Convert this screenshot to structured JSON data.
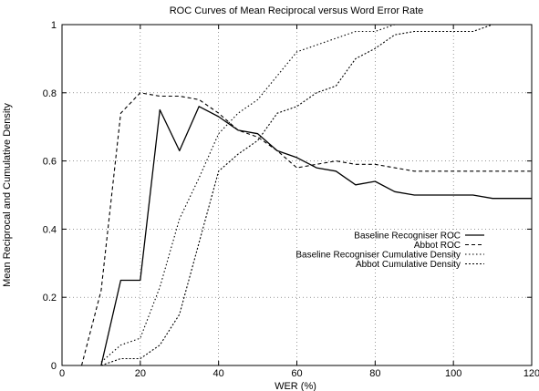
{
  "chart_data": {
    "type": "line",
    "title": "ROC Curves of Mean Reciprocal versus Word Error Rate",
    "xlabel": "WER (%)",
    "ylabel": "Mean Reciprocal and Cumulative Density",
    "xlim": [
      0,
      120
    ],
    "ylim": [
      0,
      1
    ],
    "xticks": [
      0,
      20,
      40,
      60,
      80,
      100,
      120
    ],
    "yticks": [
      0,
      0.2,
      0.4,
      0.6,
      0.8,
      1
    ],
    "grid": true,
    "legend_position": "right-middle",
    "series": [
      {
        "name": "Baseline Recogniser ROC",
        "dash": "solid",
        "x": [
          10,
          15,
          20,
          25,
          30,
          35,
          40,
          45,
          50,
          55,
          60,
          65,
          70,
          75,
          80,
          85,
          90,
          95,
          100,
          105,
          110,
          115,
          120
        ],
        "y": [
          0,
          0.25,
          0.25,
          0.75,
          0.63,
          0.76,
          0.73,
          0.69,
          0.68,
          0.63,
          0.61,
          0.58,
          0.57,
          0.53,
          0.54,
          0.51,
          0.5,
          0.5,
          0.5,
          0.5,
          0.49,
          0.49,
          0.49
        ]
      },
      {
        "name": "Abbot ROC",
        "dash": "dashed",
        "x": [
          5,
          10,
          15,
          20,
          25,
          30,
          35,
          40,
          45,
          50,
          55,
          60,
          65,
          70,
          75,
          80,
          85,
          90,
          95,
          100,
          105,
          110,
          115,
          120
        ],
        "y": [
          0,
          0.22,
          0.74,
          0.8,
          0.79,
          0.79,
          0.78,
          0.74,
          0.69,
          0.67,
          0.63,
          0.58,
          0.59,
          0.6,
          0.59,
          0.59,
          0.58,
          0.57,
          0.57,
          0.57,
          0.57,
          0.57,
          0.57,
          0.57
        ]
      },
      {
        "name": "Baseline Recogniser Cumulative Density",
        "dash": "dotted",
        "x": [
          10,
          15,
          20,
          25,
          30,
          35,
          40,
          45,
          50,
          55,
          60,
          65,
          70,
          75,
          80,
          85,
          90,
          95,
          100,
          105,
          110,
          115,
          120
        ],
        "y": [
          0.01,
          0.06,
          0.08,
          0.23,
          0.43,
          0.55,
          0.68,
          0.74,
          0.78,
          0.85,
          0.92,
          0.94,
          0.96,
          0.98,
          0.98,
          1,
          1,
          1,
          1,
          1,
          1,
          1,
          1
        ]
      },
      {
        "name": "Abbot Cumulative Density",
        "dash": "dense-dotted",
        "x": [
          10,
          15,
          20,
          25,
          30,
          35,
          40,
          45,
          50,
          55,
          60,
          65,
          70,
          75,
          80,
          85,
          90,
          95,
          100,
          105,
          110,
          115,
          120
        ],
        "y": [
          0,
          0.02,
          0.02,
          0.06,
          0.15,
          0.36,
          0.57,
          0.62,
          0.66,
          0.74,
          0.76,
          0.8,
          0.82,
          0.9,
          0.93,
          0.97,
          0.98,
          0.98,
          0.98,
          0.98,
          1,
          1,
          1
        ]
      }
    ]
  }
}
